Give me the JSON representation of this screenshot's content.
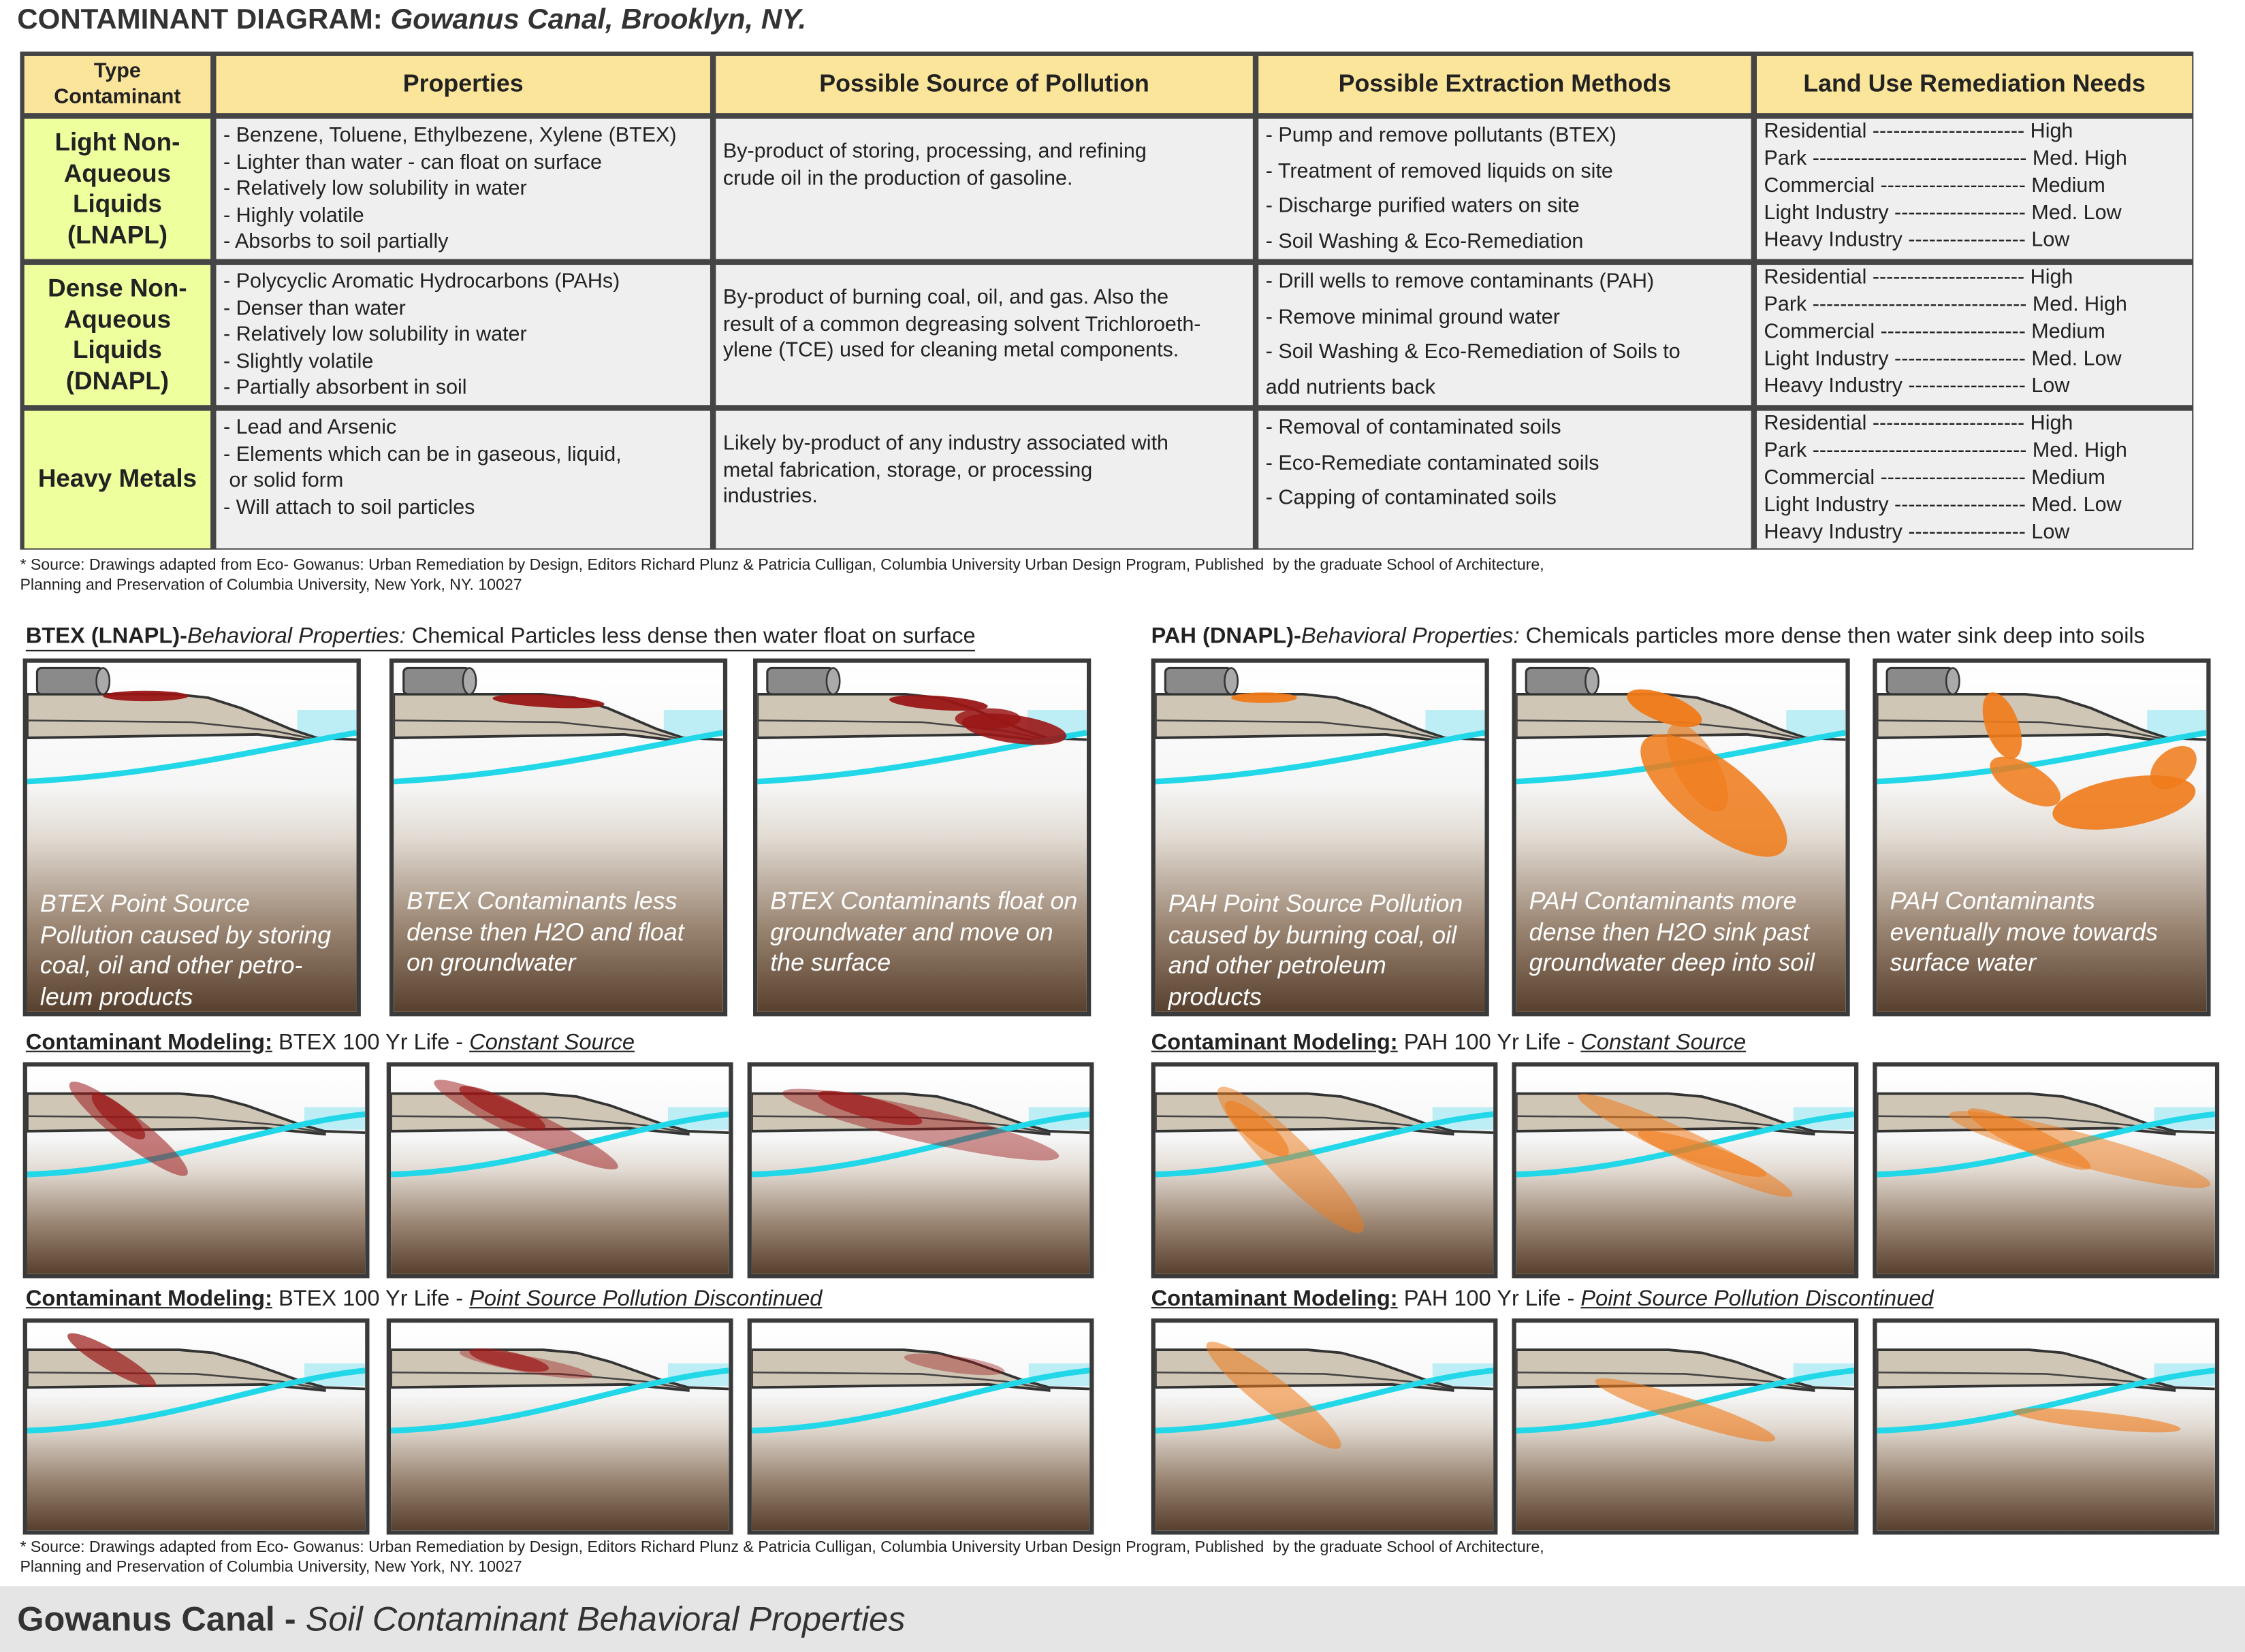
{
  "header": {
    "title": "CONTAMINANT DIAGRAM:",
    "subtitle": "Gowanus Canal, Brooklyn, NY."
  },
  "table": {
    "columns": [
      [
        "Type",
        "Contaminant"
      ],
      [
        "Properties"
      ],
      [
        "Possible Source of Pollution"
      ],
      [
        "Possible Extraction Methods"
      ],
      [
        "Land Use Remediation Needs"
      ]
    ],
    "rows": [
      {
        "type": [
          "Light Non-",
          "Aqueous",
          "Liquids",
          "(LNAPL)"
        ],
        "properties": [
          "- Benzene, Toluene, Ethylbezene, Xylene (BTEX)",
          "- Lighter than water - can float on surface",
          "- Relatively low solubility in water",
          "- Highly volatile",
          "- Absorbs to soil partially"
        ],
        "source": [
          "By-product of storing, processing, and refining",
          "crude oil in the production of gasoline."
        ],
        "methods": [
          "- Pump and remove pollutants (BTEX)",
          "- Treatment of removed liquids on site",
          "- Discharge purified waters on site",
          "- Soil Washing & Eco-Remediation"
        ],
        "land_use": [
          "Residential ---------------------- High",
          "Park ------------------------------- Med. High",
          "Commercial --------------------- Medium",
          "Light Industry ------------------- Med. Low",
          "Heavy Industry ----------------- Low"
        ]
      },
      {
        "type": [
          "Dense Non-",
          "Aqueous",
          "Liquids",
          "(DNAPL)"
        ],
        "properties": [
          "- Polycyclic Aromatic Hydrocarbons (PAHs)",
          "- Denser than water",
          "- Relatively low solubility in water",
          "- Slightly volatile",
          "- Partially absorbent in soil"
        ],
        "source": [
          "By-product of burning coal, oil, and gas. Also the",
          "result of a common degreasing solvent Trichloroeth-",
          "ylene (TCE) used for cleaning metal components."
        ],
        "methods": [
          "- Drill wells to remove contaminants (PAH)",
          "- Remove minimal ground water",
          "- Soil Washing & Eco-Remediation of Soils to",
          "add nutrients back"
        ],
        "land_use": [
          "Residential ---------------------- High",
          "Park ------------------------------- Med. High",
          "Commercial --------------------- Medium",
          "Light Industry ------------------- Med. Low",
          "Heavy Industry ----------------- Low"
        ]
      },
      {
        "type": [
          "Heavy Metals"
        ],
        "properties": [
          "- Lead and Arsenic",
          "- Elements which can be in gaseous, liquid,",
          " or solid form",
          "- Will attach to soil particles"
        ],
        "source": [
          "Likely by-product of any industry associated with",
          "metal fabrication, storage, or processing",
          "industries."
        ],
        "methods": [
          "- Removal of contaminated soils",
          "- Eco-Remediate contaminated soils",
          "- Capping of contaminated soils"
        ],
        "land_use": [
          "Residential ---------------------- High",
          "Park ------------------------------- Med. High",
          "Commercial --------------------- Medium",
          "Light Industry ------------------- Med. Low",
          "Heavy Industry ----------------- Low"
        ]
      }
    ]
  },
  "source_note_top": [
    "* Source: Drawings adapted from Eco- Gowanus: Urban Remediation by Design, Editors Richard Plunz & Patricia Culligan, Columbia University Urban Design Program, Published  by the graduate School of Architecture,",
    "Planning and Preservation of Columbia University, New York, NY. 10027"
  ],
  "sections": [
    {
      "heading": {
        "bold": "BTEX (LNAPL)-",
        "italic": "Behavioral Properties:",
        "text": " Chemical Particles less dense then water float on surface"
      },
      "captions": [
        [
          "BTEX Point Source",
          "Pollution caused by storing",
          "coal, oil and other petro-",
          "leum products"
        ],
        [
          "BTEX Contaminants less",
          "dense then H2O and float",
          "on groundwater"
        ],
        [
          "BTEX Contaminants float on",
          "groundwater and move on",
          "the surface"
        ]
      ],
      "modeling": [
        {
          "bold": "Contaminant Modeling:",
          "text": " BTEX 100 Yr Life - ",
          "italic": "Constant Source"
        },
        {
          "bold": "Contaminant Modeling:",
          "text": " BTEX 100 Yr Life - ",
          "italic": "Point Source Pollution Discontinued"
        }
      ]
    },
    {
      "heading": {
        "bold": "PAH (DNAPL)-",
        "italic": "Behavioral Properties:",
        "text": " Chemicals particles more dense then water sink deep into soils"
      },
      "captions": [
        [
          "PAH Point Source Pollution",
          "caused by burning coal, oil",
          "and other petroleum",
          "products"
        ],
        [
          "PAH Contaminants more",
          "dense then H2O sink past",
          "groundwater deep into soil"
        ],
        [
          "PAH Contaminants",
          "eventually move towards",
          "surface water"
        ]
      ],
      "modeling": [
        {
          "bold": "Contaminant Modeling:",
          "text": " PAH 100 Yr Life - ",
          "italic": "Constant Source"
        },
        {
          "bold": "Contaminant Modeling:",
          "text": " PAH 100 Yr Life - ",
          "italic": "Point Source Pollution Discontinued"
        }
      ]
    }
  ],
  "source_note_bottom": [
    "* Source: Drawings adapted from Eco- Gowanus: Urban Remediation by Design, Editors Richard Plunz & Patricia Culligan, Columbia University Urban Design Program, Published  by the graduate School of Architecture,",
    "Planning and Preservation of Columbia University, New York, NY. 10027"
  ],
  "footer": {
    "title": "Gowanus Canal -",
    "subtitle": " Soil Contaminant Behavioral Properties"
  }
}
